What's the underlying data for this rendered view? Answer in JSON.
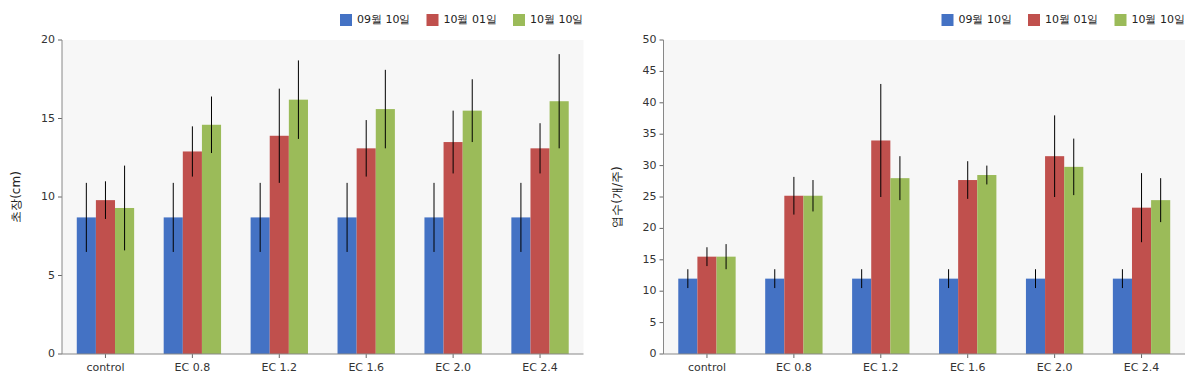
{
  "chart_data": [
    {
      "type": "bar",
      "ylabel": "초장(cm)",
      "categories": [
        "control",
        "EC 0.8",
        "EC 1.2",
        "EC 1.6",
        "EC 2.0",
        "EC 2.4"
      ],
      "series": [
        {
          "name": "09월 10일",
          "color": "#4472C4",
          "values": [
            8.7,
            8.7,
            8.7,
            8.7,
            8.7,
            8.7
          ],
          "errors": [
            2.2,
            2.2,
            2.2,
            2.2,
            2.2,
            2.2
          ]
        },
        {
          "name": "10월 01일",
          "color": "#C0504D",
          "values": [
            9.8,
            12.9,
            13.9,
            13.1,
            13.5,
            13.1
          ],
          "errors": [
            1.2,
            1.6,
            3.0,
            1.8,
            2.0,
            1.6
          ]
        },
        {
          "name": "10월 10일",
          "color": "#9BBB59",
          "values": [
            9.3,
            14.6,
            16.2,
            15.6,
            15.5,
            16.1
          ],
          "errors": [
            2.7,
            1.8,
            2.5,
            2.5,
            2.0,
            3.0
          ]
        }
      ],
      "ylim": [
        0,
        20
      ],
      "yticks": [
        0,
        5,
        10,
        15,
        20
      ],
      "grid": false,
      "legend": "upper right"
    },
    {
      "type": "bar",
      "ylabel": "엽수(개/주)",
      "categories": [
        "control",
        "EC 0.8",
        "EC 1.2",
        "EC 1.6",
        "EC 2.0",
        "EC 2.4"
      ],
      "series": [
        {
          "name": "09월 10일",
          "color": "#4472C4",
          "values": [
            12.0,
            12.0,
            12.0,
            12.0,
            12.0,
            12.0
          ],
          "errors": [
            1.5,
            1.5,
            1.5,
            1.5,
            1.5,
            1.5
          ]
        },
        {
          "name": "10월 01일",
          "color": "#C0504D",
          "values": [
            15.5,
            25.2,
            34.0,
            27.7,
            31.5,
            23.3
          ],
          "errors": [
            1.5,
            3.0,
            9.0,
            3.0,
            6.5,
            5.5
          ]
        },
        {
          "name": "10월 10일",
          "color": "#9BBB59",
          "values": [
            15.5,
            25.2,
            28.0,
            28.5,
            29.8,
            24.5
          ],
          "errors": [
            2.0,
            2.5,
            3.5,
            1.5,
            4.5,
            3.5
          ]
        }
      ],
      "ylim": [
        0,
        50
      ],
      "yticks": [
        0,
        5,
        10,
        15,
        20,
        25,
        30,
        35,
        40,
        45,
        50
      ],
      "grid": false,
      "legend": "upper right"
    }
  ]
}
